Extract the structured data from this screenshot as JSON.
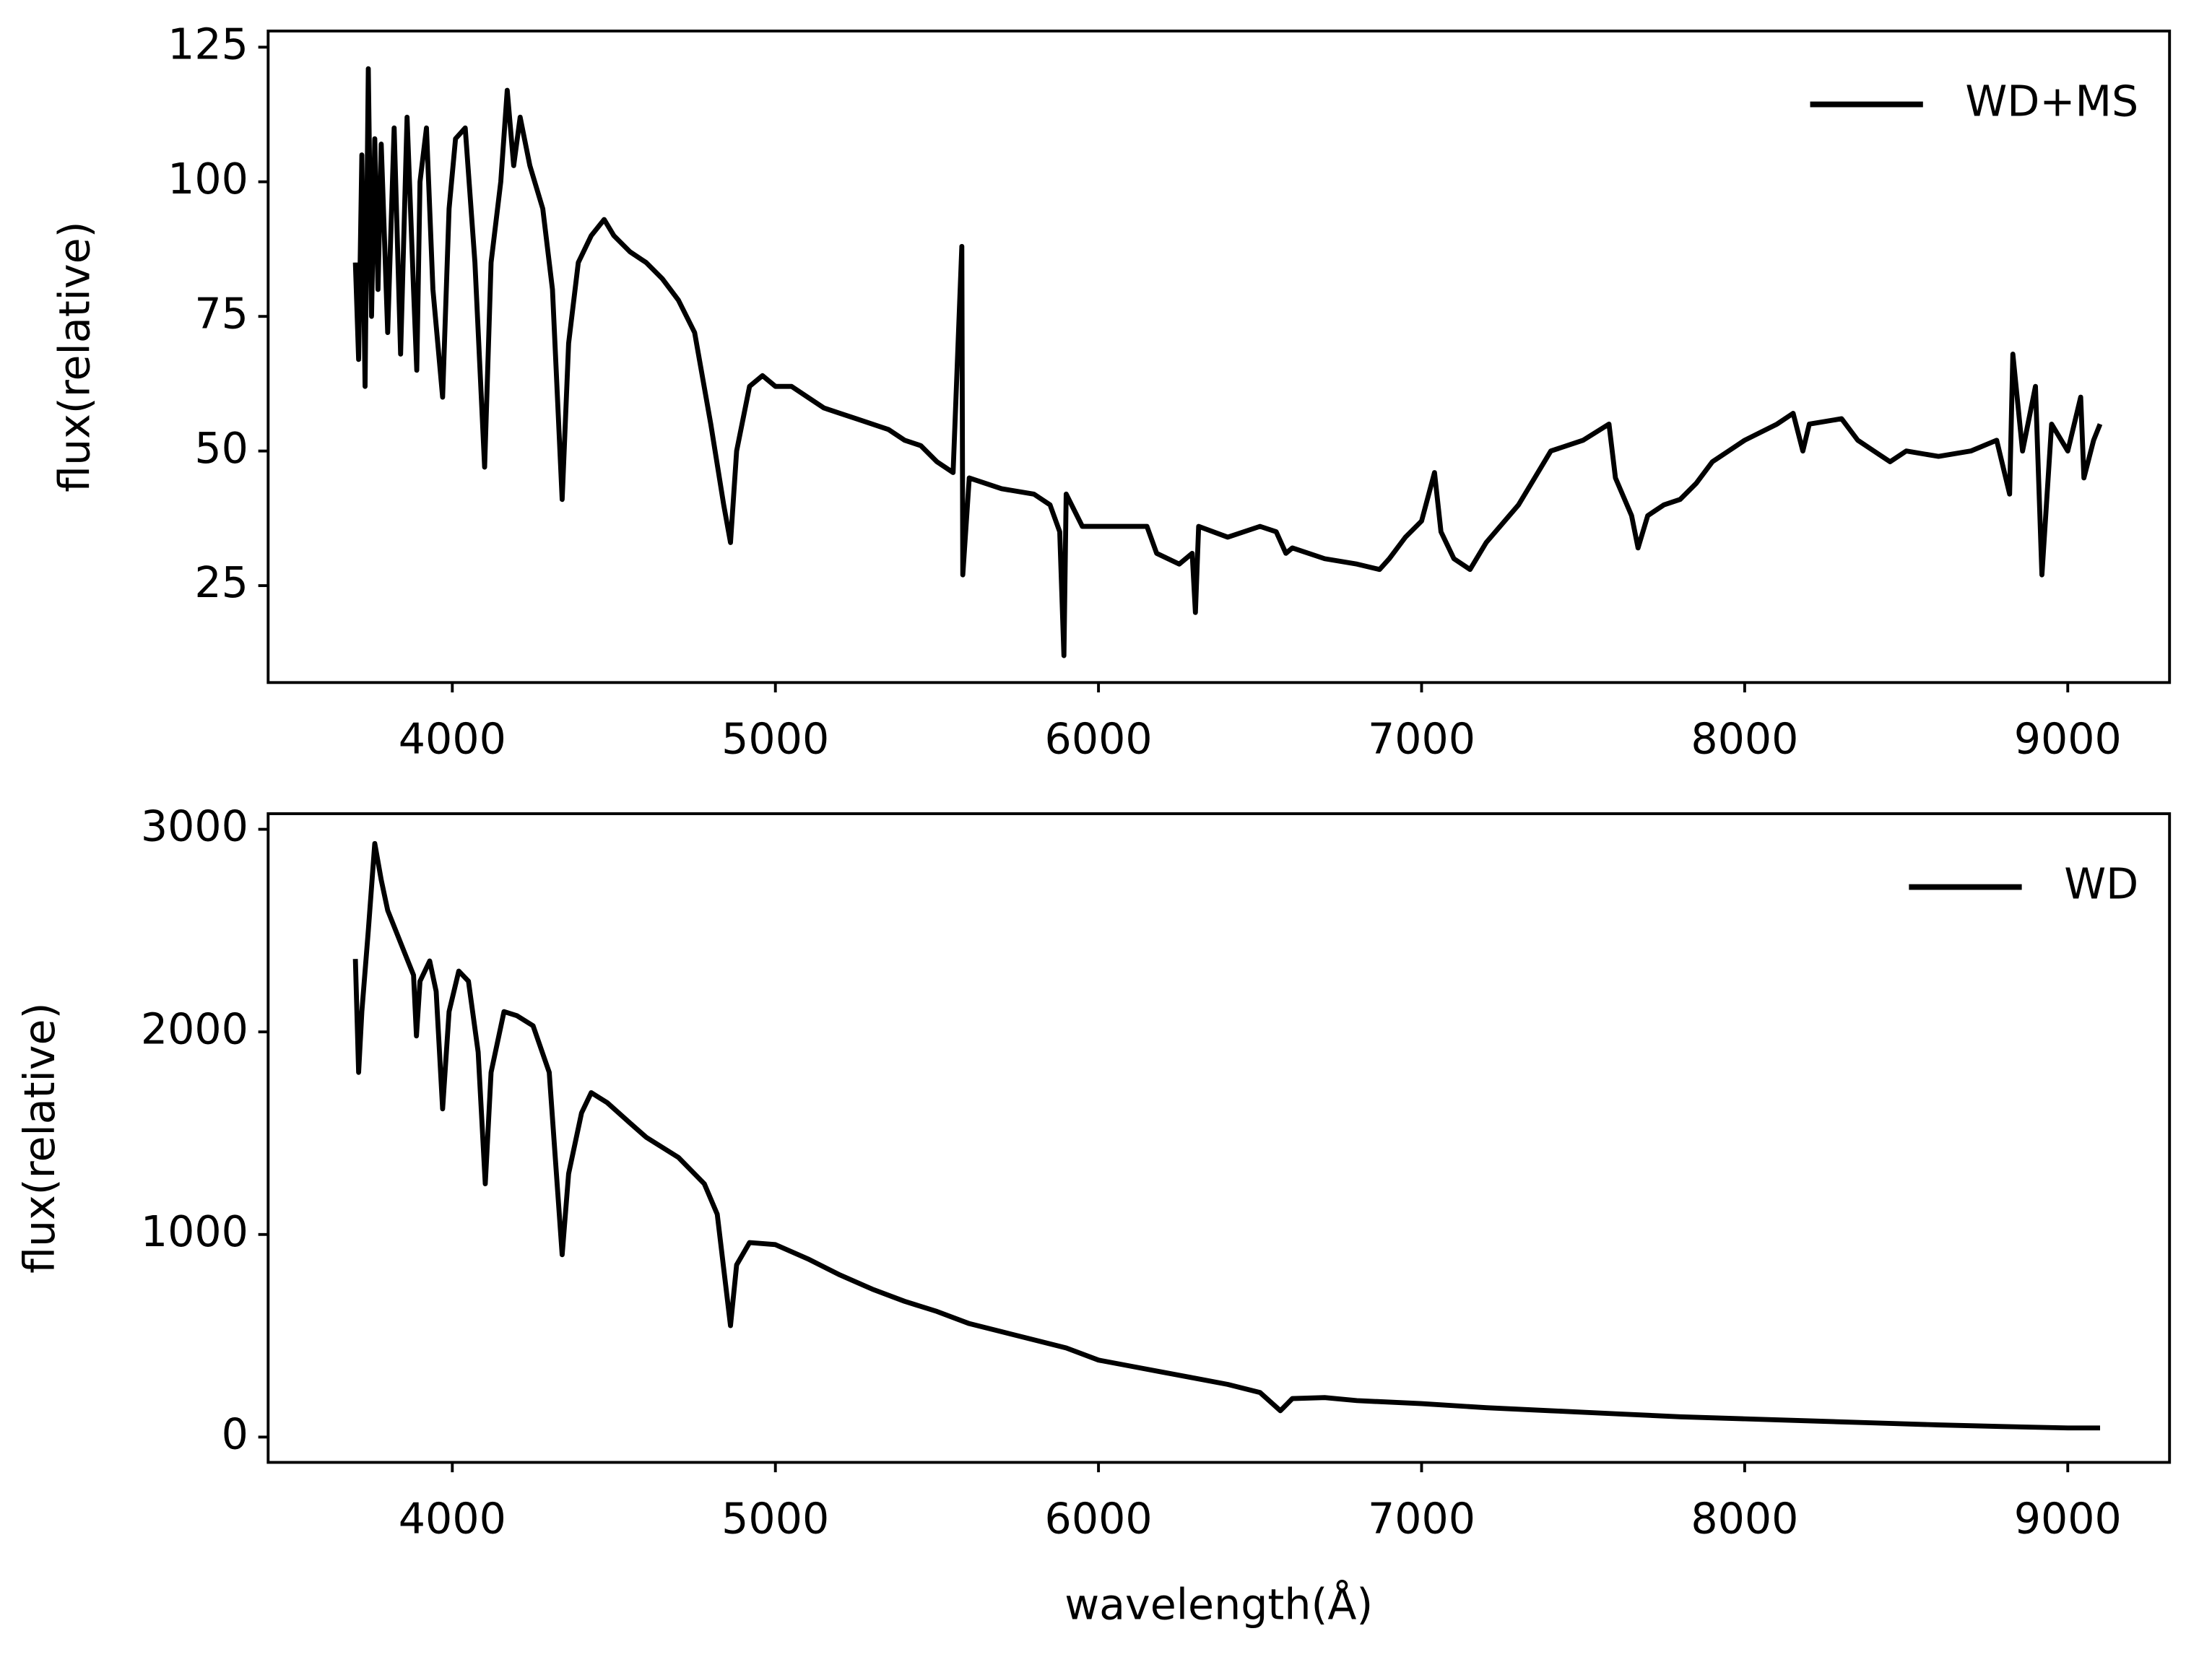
{
  "chart_data": [
    {
      "type": "line",
      "ylabel": "flux(relative)",
      "xlim": [
        3430,
        9315
      ],
      "xticks": [
        4000,
        5000,
        6000,
        7000,
        8000,
        9000
      ],
      "ylim": [
        7,
        128
      ],
      "yticks": [
        25,
        50,
        75,
        100,
        125
      ],
      "legend": "upper right",
      "x": [
        3700,
        3710,
        3720,
        3730,
        3740,
        3750,
        3760,
        3770,
        3780,
        3800,
        3820,
        3840,
        3860,
        3880,
        3890,
        3900,
        3920,
        3940,
        3970,
        3990,
        4010,
        4040,
        4070,
        4100,
        4120,
        4150,
        4170,
        4190,
        4210,
        4240,
        4280,
        4310,
        4340,
        4360,
        4390,
        4430,
        4470,
        4500,
        4550,
        4600,
        4650,
        4700,
        4750,
        4800,
        4840,
        4861,
        4880,
        4920,
        4960,
        5000,
        5050,
        5100,
        5150,
        5200,
        5250,
        5300,
        5350,
        5400,
        5450,
        5500,
        5550,
        5577,
        5580,
        5600,
        5700,
        5800,
        5850,
        5880,
        5893,
        5900,
        5950,
        6000,
        6100,
        6150,
        6180,
        6250,
        6290,
        6300,
        6310,
        6400,
        6500,
        6550,
        6580,
        6600,
        6700,
        6800,
        6870,
        6900,
        6950,
        7000,
        7040,
        7060,
        7100,
        7150,
        7200,
        7300,
        7350,
        7400,
        7500,
        7580,
        7600,
        7650,
        7670,
        7700,
        7750,
        7800,
        7850,
        7900,
        7950,
        8000,
        8100,
        8150,
        8180,
        8200,
        8300,
        8350,
        8400,
        8450,
        8500,
        8600,
        8700,
        8780,
        8820,
        8830,
        8860,
        8900,
        8920,
        8950,
        9000,
        9040,
        9050,
        9080,
        9100
      ],
      "series": [
        {
          "name": "WD+MS",
          "color": "#000000",
          "values": [
            85,
            67,
            105,
            62,
            121,
            75,
            108,
            80,
            107,
            72,
            110,
            68,
            112,
            80,
            65,
            100,
            110,
            80,
            60,
            95,
            108,
            110,
            85,
            47,
            85,
            100,
            117,
            103,
            112,
            103,
            95,
            80,
            41,
            70,
            85,
            90,
            93,
            90,
            87,
            85,
            82,
            78,
            72,
            55,
            40,
            33,
            50,
            62,
            64,
            62,
            62,
            60,
            58,
            57,
            56,
            55,
            54,
            52,
            51,
            48,
            46,
            88,
            27,
            45,
            43,
            42,
            40,
            35,
            12,
            42,
            36,
            36,
            36,
            36,
            31,
            29,
            31,
            20,
            36,
            34,
            36,
            35,
            31,
            32,
            30,
            29,
            28,
            30,
            34,
            37,
            46,
            35,
            30,
            28,
            33,
            40,
            45,
            50,
            52,
            55,
            45,
            38,
            32,
            38,
            40,
            41,
            44,
            48,
            50,
            52,
            55,
            57,
            50,
            55,
            56,
            52,
            50,
            48,
            50,
            49,
            50,
            52,
            42,
            68,
            50,
            62,
            27,
            55,
            50,
            60,
            45,
            52,
            55
          ]
        }
      ]
    },
    {
      "type": "line",
      "ylabel": "flux(relative)",
      "xlabel": "wavelength(Å)",
      "xlim": [
        3430,
        9315
      ],
      "xticks": [
        4000,
        5000,
        6000,
        7000,
        8000,
        9000
      ],
      "ylim": [
        -125,
        3077
      ],
      "yticks": [
        0,
        1000,
        2000,
        3000
      ],
      "legend": "upper right",
      "x": [
        3700,
        3710,
        3720,
        3740,
        3760,
        3780,
        3800,
        3850,
        3880,
        3889,
        3900,
        3930,
        3950,
        3970,
        3990,
        4020,
        4050,
        4080,
        4102,
        4120,
        4160,
        4200,
        4250,
        4300,
        4340,
        4360,
        4400,
        4430,
        4480,
        4550,
        4600,
        4700,
        4780,
        4820,
        4861,
        4880,
        4920,
        5000,
        5100,
        5200,
        5300,
        5400,
        5500,
        5600,
        5700,
        5800,
        5900,
        6000,
        6100,
        6200,
        6300,
        6400,
        6500,
        6563,
        6600,
        6700,
        6800,
        7000,
        7200,
        7400,
        7600,
        7800,
        8000,
        8200,
        8400,
        8600,
        8800,
        9000,
        9100
      ],
      "series": [
        {
          "name": "WD",
          "color": "#000000",
          "values": [
            2360,
            1800,
            2100,
            2500,
            2930,
            2750,
            2600,
            2400,
            2280,
            1980,
            2250,
            2350,
            2200,
            1620,
            2100,
            2300,
            2250,
            1900,
            1250,
            1800,
            2100,
            2080,
            2030,
            1800,
            900,
            1300,
            1600,
            1700,
            1650,
            1550,
            1480,
            1380,
            1250,
            1100,
            550,
            850,
            960,
            950,
            880,
            800,
            730,
            670,
            620,
            560,
            520,
            480,
            440,
            380,
            350,
            320,
            290,
            260,
            220,
            130,
            190,
            195,
            180,
            165,
            145,
            130,
            115,
            100,
            90,
            80,
            70,
            60,
            52,
            45,
            45
          ]
        }
      ]
    }
  ]
}
